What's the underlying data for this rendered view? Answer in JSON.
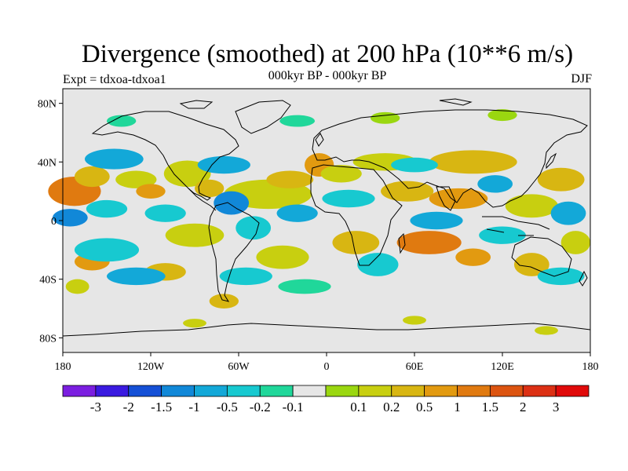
{
  "header": {
    "title": "Divergence (smoothed) at 200 hPa (10**6 m/s)",
    "subtitle": "000kyr BP - 000kyr BP",
    "left_label": "Expt = tdxoa-tdxoa1",
    "right_label": "DJF"
  },
  "map": {
    "projection": "cylindrical-equidistant",
    "lon_range": [
      -180,
      180
    ],
    "lat_range": [
      -90,
      90
    ],
    "background_color": "#e6e6e6",
    "coastline_color": "#000000",
    "y_tick_labels": [
      {
        "lat": 80,
        "label": "80N"
      },
      {
        "lat": 40,
        "label": "40N"
      },
      {
        "lat": 0,
        "label": "0"
      },
      {
        "lat": -40,
        "label": "40S"
      },
      {
        "lat": -80,
        "label": "80S"
      }
    ],
    "x_tick_labels": [
      {
        "lon": -180,
        "label": "180"
      },
      {
        "lon": -120,
        "label": "120W"
      },
      {
        "lon": -60,
        "label": "60W"
      },
      {
        "lon": 0,
        "label": "0"
      },
      {
        "lon": 60,
        "label": "60E"
      },
      {
        "lon": 120,
        "label": "120E"
      },
      {
        "lon": 180,
        "label": "180"
      }
    ]
  },
  "colorbar": {
    "colors": [
      "#7b1ee0",
      "#3a1ae0",
      "#1550d6",
      "#1188d8",
      "#13a8d8",
      "#17c9d0",
      "#20d79a",
      "#e6e6e6",
      "#9ad710",
      "#c8cf10",
      "#d8b612",
      "#e29a10",
      "#e07a10",
      "#dc5410",
      "#dc3014",
      "#e00a0a"
    ],
    "labels": [
      "-3",
      "-2",
      "-1.5",
      "-1",
      "-0.5",
      "-0.2",
      "-0.1",
      "0.1",
      "0.2",
      "0.5",
      "1",
      "1.5",
      "2",
      "3"
    ]
  },
  "fields": [
    {
      "lon": -172,
      "lat": 20,
      "rx": 18,
      "ry": 10,
      "level": 12
    },
    {
      "lon": -160,
      "lat": 30,
      "rx": 12,
      "ry": 7,
      "level": 10
    },
    {
      "lon": -130,
      "lat": 28,
      "rx": 14,
      "ry": 6,
      "level": 9
    },
    {
      "lon": -120,
      "lat": 20,
      "rx": 10,
      "ry": 5,
      "level": 11
    },
    {
      "lon": -95,
      "lat": 32,
      "rx": 16,
      "ry": 9,
      "level": 9
    },
    {
      "lon": -80,
      "lat": 22,
      "rx": 10,
      "ry": 6,
      "level": 10
    },
    {
      "lon": -40,
      "lat": 18,
      "rx": 30,
      "ry": 10,
      "level": 9
    },
    {
      "lon": -25,
      "lat": 28,
      "rx": 16,
      "ry": 6,
      "level": 10
    },
    {
      "lon": -5,
      "lat": 38,
      "rx": 10,
      "ry": 8,
      "level": 11
    },
    {
      "lon": 10,
      "lat": 32,
      "rx": 14,
      "ry": 6,
      "level": 9
    },
    {
      "lon": 40,
      "lat": 40,
      "rx": 22,
      "ry": 6,
      "level": 9
    },
    {
      "lon": 100,
      "lat": 40,
      "rx": 30,
      "ry": 8,
      "level": 10
    },
    {
      "lon": 55,
      "lat": 20,
      "rx": 18,
      "ry": 7,
      "level": 10
    },
    {
      "lon": 90,
      "lat": 15,
      "rx": 20,
      "ry": 7,
      "level": 11
    },
    {
      "lon": 140,
      "lat": 10,
      "rx": 18,
      "ry": 8,
      "level": 9
    },
    {
      "lon": 160,
      "lat": 28,
      "rx": 16,
      "ry": 8,
      "level": 10
    },
    {
      "lon": -160,
      "lat": -28,
      "rx": 12,
      "ry": 6,
      "level": 11
    },
    {
      "lon": -170,
      "lat": -45,
      "rx": 8,
      "ry": 5,
      "level": 9
    },
    {
      "lon": -90,
      "lat": -10,
      "rx": 20,
      "ry": 8,
      "level": 9
    },
    {
      "lon": -110,
      "lat": -35,
      "rx": 14,
      "ry": 6,
      "level": 10
    },
    {
      "lon": -30,
      "lat": -25,
      "rx": 18,
      "ry": 8,
      "level": 9
    },
    {
      "lon": 20,
      "lat": -15,
      "rx": 16,
      "ry": 8,
      "level": 10
    },
    {
      "lon": 70,
      "lat": -15,
      "rx": 22,
      "ry": 8,
      "level": 12
    },
    {
      "lon": 100,
      "lat": -25,
      "rx": 12,
      "ry": 6,
      "level": 11
    },
    {
      "lon": 140,
      "lat": -30,
      "rx": 12,
      "ry": 8,
      "level": 10
    },
    {
      "lon": 170,
      "lat": -15,
      "rx": 10,
      "ry": 8,
      "level": 9
    },
    {
      "lon": -70,
      "lat": -55,
      "rx": 10,
      "ry": 5,
      "level": 10
    },
    {
      "lon": -175,
      "lat": 2,
      "rx": 12,
      "ry": 6,
      "level": 3
    },
    {
      "lon": -150,
      "lat": 8,
      "rx": 14,
      "ry": 6,
      "level": 5
    },
    {
      "lon": -145,
      "lat": 42,
      "rx": 20,
      "ry": 7,
      "level": 4
    },
    {
      "lon": -150,
      "lat": -20,
      "rx": 22,
      "ry": 8,
      "level": 5
    },
    {
      "lon": -130,
      "lat": -38,
      "rx": 20,
      "ry": 6,
      "level": 4
    },
    {
      "lon": -110,
      "lat": 5,
      "rx": 14,
      "ry": 6,
      "level": 5
    },
    {
      "lon": -70,
      "lat": 38,
      "rx": 18,
      "ry": 6,
      "level": 4
    },
    {
      "lon": -65,
      "lat": 12,
      "rx": 12,
      "ry": 8,
      "level": 3
    },
    {
      "lon": -50,
      "lat": -5,
      "rx": 12,
      "ry": 8,
      "level": 5
    },
    {
      "lon": -55,
      "lat": -38,
      "rx": 18,
      "ry": 6,
      "level": 5
    },
    {
      "lon": -20,
      "lat": 5,
      "rx": 14,
      "ry": 6,
      "level": 4
    },
    {
      "lon": -15,
      "lat": -45,
      "rx": 18,
      "ry": 5,
      "level": 6
    },
    {
      "lon": 15,
      "lat": 15,
      "rx": 18,
      "ry": 6,
      "level": 5
    },
    {
      "lon": 35,
      "lat": -30,
      "rx": 14,
      "ry": 8,
      "level": 5
    },
    {
      "lon": 60,
      "lat": 38,
      "rx": 16,
      "ry": 5,
      "level": 5
    },
    {
      "lon": 75,
      "lat": 0,
      "rx": 18,
      "ry": 6,
      "level": 4
    },
    {
      "lon": 115,
      "lat": 25,
      "rx": 12,
      "ry": 6,
      "level": 4
    },
    {
      "lon": 120,
      "lat": -10,
      "rx": 16,
      "ry": 6,
      "level": 5
    },
    {
      "lon": 165,
      "lat": 5,
      "rx": 12,
      "ry": 8,
      "level": 4
    },
    {
      "lon": 160,
      "lat": -38,
      "rx": 16,
      "ry": 6,
      "level": 5
    },
    {
      "lon": -140,
      "lat": 68,
      "rx": 10,
      "ry": 4,
      "level": 6
    },
    {
      "lon": -20,
      "lat": 68,
      "rx": 12,
      "ry": 4,
      "level": 6
    },
    {
      "lon": 40,
      "lat": 70,
      "rx": 10,
      "ry": 4,
      "level": 8
    },
    {
      "lon": 120,
      "lat": 72,
      "rx": 10,
      "ry": 4,
      "level": 8
    },
    {
      "lon": -90,
      "lat": -70,
      "rx": 8,
      "ry": 3,
      "level": 9
    },
    {
      "lon": 60,
      "lat": -68,
      "rx": 8,
      "ry": 3,
      "level": 9
    },
    {
      "lon": 150,
      "lat": -75,
      "rx": 8,
      "ry": 3,
      "level": 9
    }
  ]
}
